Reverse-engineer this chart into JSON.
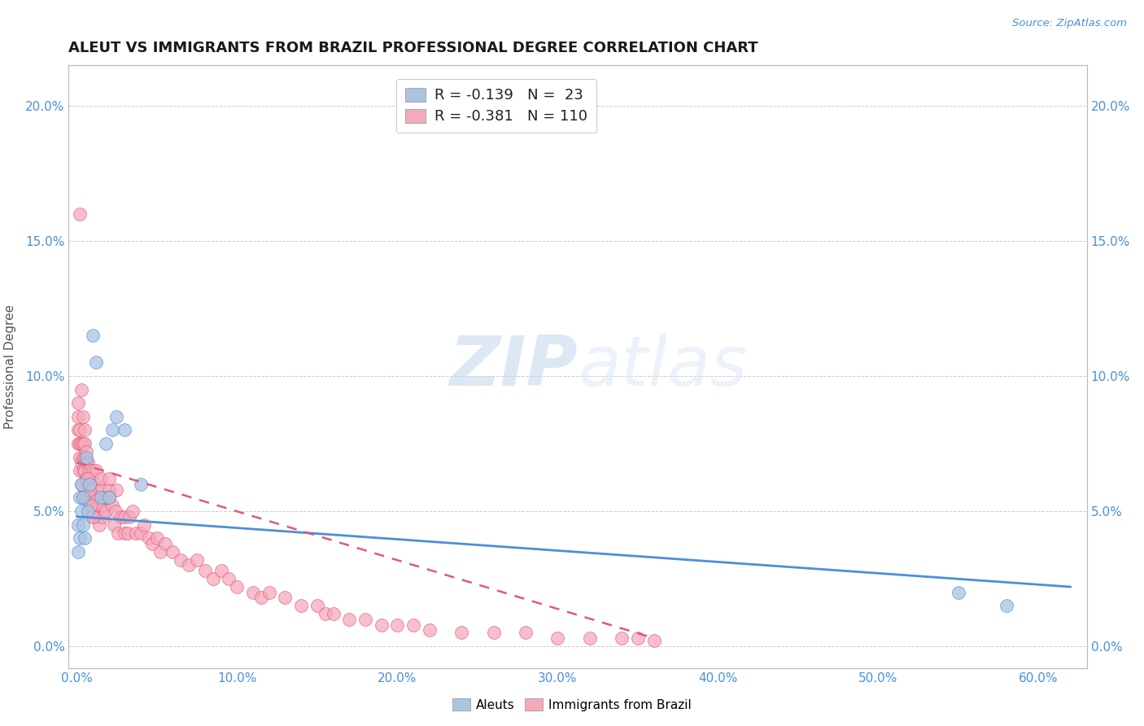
{
  "title": "ALEUT VS IMMIGRANTS FROM BRAZIL PROFESSIONAL DEGREE CORRELATION CHART",
  "source_text": "Source: ZipAtlas.com",
  "xlabel_ticks": [
    "0.0%",
    "10.0%",
    "20.0%",
    "30.0%",
    "40.0%",
    "50.0%",
    "60.0%"
  ],
  "xlabel_vals": [
    0.0,
    0.1,
    0.2,
    0.3,
    0.4,
    0.5,
    0.6
  ],
  "ylabel_ticks": [
    "0.0%",
    "5.0%",
    "10.0%",
    "15.0%",
    "20.0%"
  ],
  "ylabel_vals": [
    0.0,
    0.05,
    0.1,
    0.15,
    0.2
  ],
  "xmin": -0.005,
  "xmax": 0.63,
  "ymin": -0.008,
  "ymax": 0.215,
  "aleut_color": "#aac4e2",
  "brazil_color": "#f5aabb",
  "aleut_line_color": "#4a90d9",
  "brazil_line_color": "#e05a7a",
  "aleut_R": -0.139,
  "aleut_N": 23,
  "brazil_R": -0.381,
  "brazil_N": 110,
  "watermark_zip": "ZIP",
  "watermark_atlas": "atlas",
  "ylabel": "Professional Degree",
  "legend_label_aleut": "Aleuts",
  "legend_label_brazil": "Immigrants from Brazil",
  "aleut_x": [
    0.001,
    0.001,
    0.002,
    0.002,
    0.003,
    0.003,
    0.004,
    0.004,
    0.005,
    0.006,
    0.007,
    0.008,
    0.01,
    0.012,
    0.015,
    0.018,
    0.02,
    0.022,
    0.025,
    0.03,
    0.04,
    0.55,
    0.58
  ],
  "aleut_y": [
    0.035,
    0.045,
    0.04,
    0.055,
    0.05,
    0.06,
    0.045,
    0.055,
    0.04,
    0.07,
    0.05,
    0.06,
    0.115,
    0.105,
    0.055,
    0.075,
    0.055,
    0.08,
    0.085,
    0.08,
    0.06,
    0.02,
    0.015
  ],
  "brazil_x": [
    0.001,
    0.001,
    0.001,
    0.002,
    0.002,
    0.002,
    0.002,
    0.003,
    0.003,
    0.003,
    0.004,
    0.004,
    0.004,
    0.004,
    0.005,
    0.005,
    0.005,
    0.005,
    0.006,
    0.006,
    0.006,
    0.007,
    0.007,
    0.007,
    0.008,
    0.008,
    0.008,
    0.009,
    0.009,
    0.01,
    0.01,
    0.01,
    0.011,
    0.011,
    0.012,
    0.012,
    0.013,
    0.013,
    0.014,
    0.014,
    0.015,
    0.015,
    0.016,
    0.016,
    0.017,
    0.018,
    0.018,
    0.02,
    0.02,
    0.022,
    0.023,
    0.024,
    0.025,
    0.026,
    0.028,
    0.03,
    0.03,
    0.032,
    0.033,
    0.035,
    0.037,
    0.04,
    0.042,
    0.045,
    0.047,
    0.05,
    0.052,
    0.055,
    0.06,
    0.065,
    0.07,
    0.075,
    0.08,
    0.085,
    0.09,
    0.095,
    0.1,
    0.11,
    0.115,
    0.12,
    0.13,
    0.14,
    0.15,
    0.155,
    0.16,
    0.17,
    0.18,
    0.19,
    0.2,
    0.21,
    0.22,
    0.24,
    0.26,
    0.28,
    0.3,
    0.32,
    0.34,
    0.35,
    0.36,
    0.02,
    0.001,
    0.002,
    0.003,
    0.004,
    0.005,
    0.006,
    0.007,
    0.008,
    0.009,
    0.01
  ],
  "brazil_y": [
    0.075,
    0.08,
    0.085,
    0.065,
    0.07,
    0.075,
    0.08,
    0.06,
    0.068,
    0.075,
    0.055,
    0.065,
    0.07,
    0.075,
    0.058,
    0.065,
    0.07,
    0.075,
    0.055,
    0.062,
    0.068,
    0.055,
    0.06,
    0.068,
    0.052,
    0.058,
    0.065,
    0.05,
    0.058,
    0.052,
    0.06,
    0.065,
    0.048,
    0.055,
    0.06,
    0.065,
    0.048,
    0.055,
    0.045,
    0.052,
    0.058,
    0.062,
    0.048,
    0.052,
    0.055,
    0.05,
    0.055,
    0.058,
    0.062,
    0.052,
    0.045,
    0.05,
    0.058,
    0.042,
    0.048,
    0.042,
    0.048,
    0.042,
    0.048,
    0.05,
    0.042,
    0.042,
    0.045,
    0.04,
    0.038,
    0.04,
    0.035,
    0.038,
    0.035,
    0.032,
    0.03,
    0.032,
    0.028,
    0.025,
    0.028,
    0.025,
    0.022,
    0.02,
    0.018,
    0.02,
    0.018,
    0.015,
    0.015,
    0.012,
    0.012,
    0.01,
    0.01,
    0.008,
    0.008,
    0.008,
    0.006,
    0.005,
    0.005,
    0.005,
    0.003,
    0.003,
    0.003,
    0.003,
    0.002,
    0.055,
    0.09,
    0.16,
    0.095,
    0.085,
    0.08,
    0.072,
    0.062,
    0.058,
    0.052,
    0.048
  ],
  "aleut_trendline_x": [
    0.0,
    0.62
  ],
  "aleut_trendline_y": [
    0.048,
    0.022
  ],
  "brazil_trendline_x": [
    0.0,
    0.36
  ],
  "brazil_trendline_y": [
    0.068,
    0.003
  ]
}
